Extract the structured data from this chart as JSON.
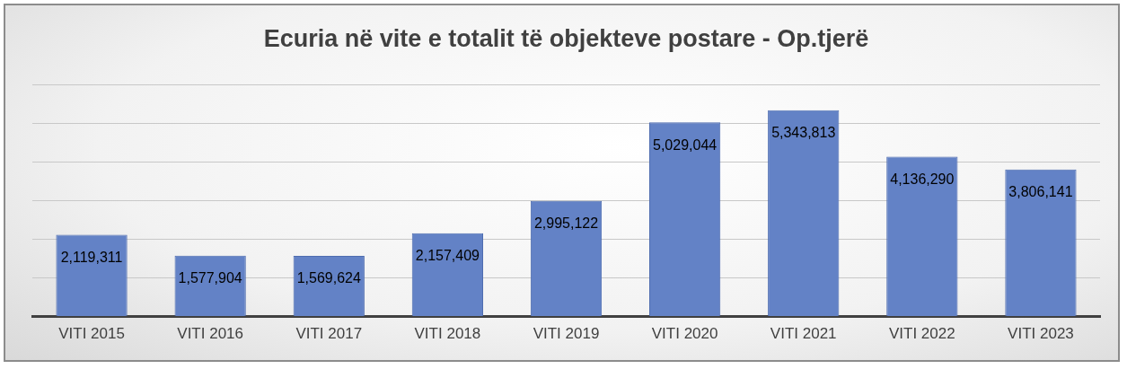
{
  "chart_data": {
    "type": "bar",
    "title": "Ecuria në vite e totalit të objekteve postare - Op.tjerë",
    "categories": [
      "VITI 2015",
      "VITI 2016",
      "VITI 2017",
      "VITI 2018",
      "VITI 2019",
      "VITI 2020",
      "VITI 2021",
      "VITI 2022",
      "VITI 2023"
    ],
    "values": [
      2119311,
      1577904,
      1569624,
      2157409,
      2995122,
      5029044,
      5343813,
      4136290,
      3806141
    ],
    "color": "#6382c6",
    "value_labels": [
      "2,119,311",
      "1,577,904",
      "1,569,624",
      "2,157,409",
      "2,995,122",
      "5,029,044",
      "5,343,813",
      "4,136,290",
      "3,806,141"
    ],
    "tick_labels": "x",
    "grid": "y",
    "legend": false
  }
}
